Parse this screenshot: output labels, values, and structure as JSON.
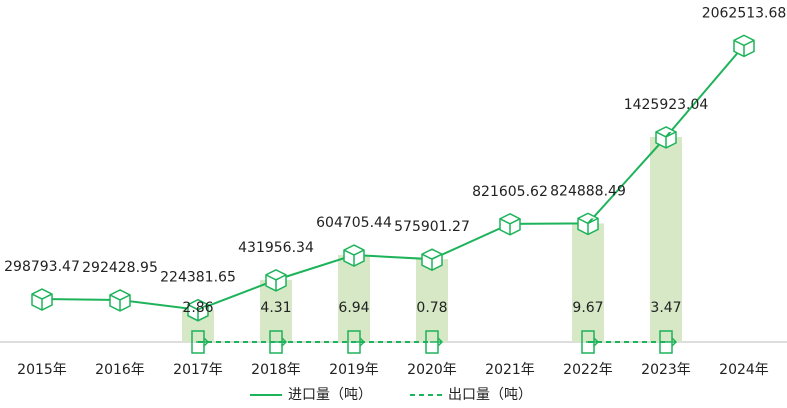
{
  "chart_data": {
    "type": "line",
    "categories": [
      "2015年",
      "2016年",
      "2017年",
      "2018年",
      "2019年",
      "2020年",
      "2021年",
      "2022年",
      "2023年",
      "2024年"
    ],
    "series": [
      {
        "name": "进口量（吨）",
        "color": "#1db35a",
        "values": [
          298793.47,
          292428.95,
          224381.65,
          431956.34,
          604705.44,
          575901.27,
          821605.62,
          824888.49,
          1425923.04,
          2062513.68
        ]
      },
      {
        "name": "出口量（吨）",
        "color": "#1db35a",
        "values": [
          null,
          null,
          2.86,
          4.31,
          6.94,
          0.78,
          null,
          9.67,
          3.47,
          null
        ]
      }
    ],
    "ylim": [
      0,
      2100000
    ]
  }
}
